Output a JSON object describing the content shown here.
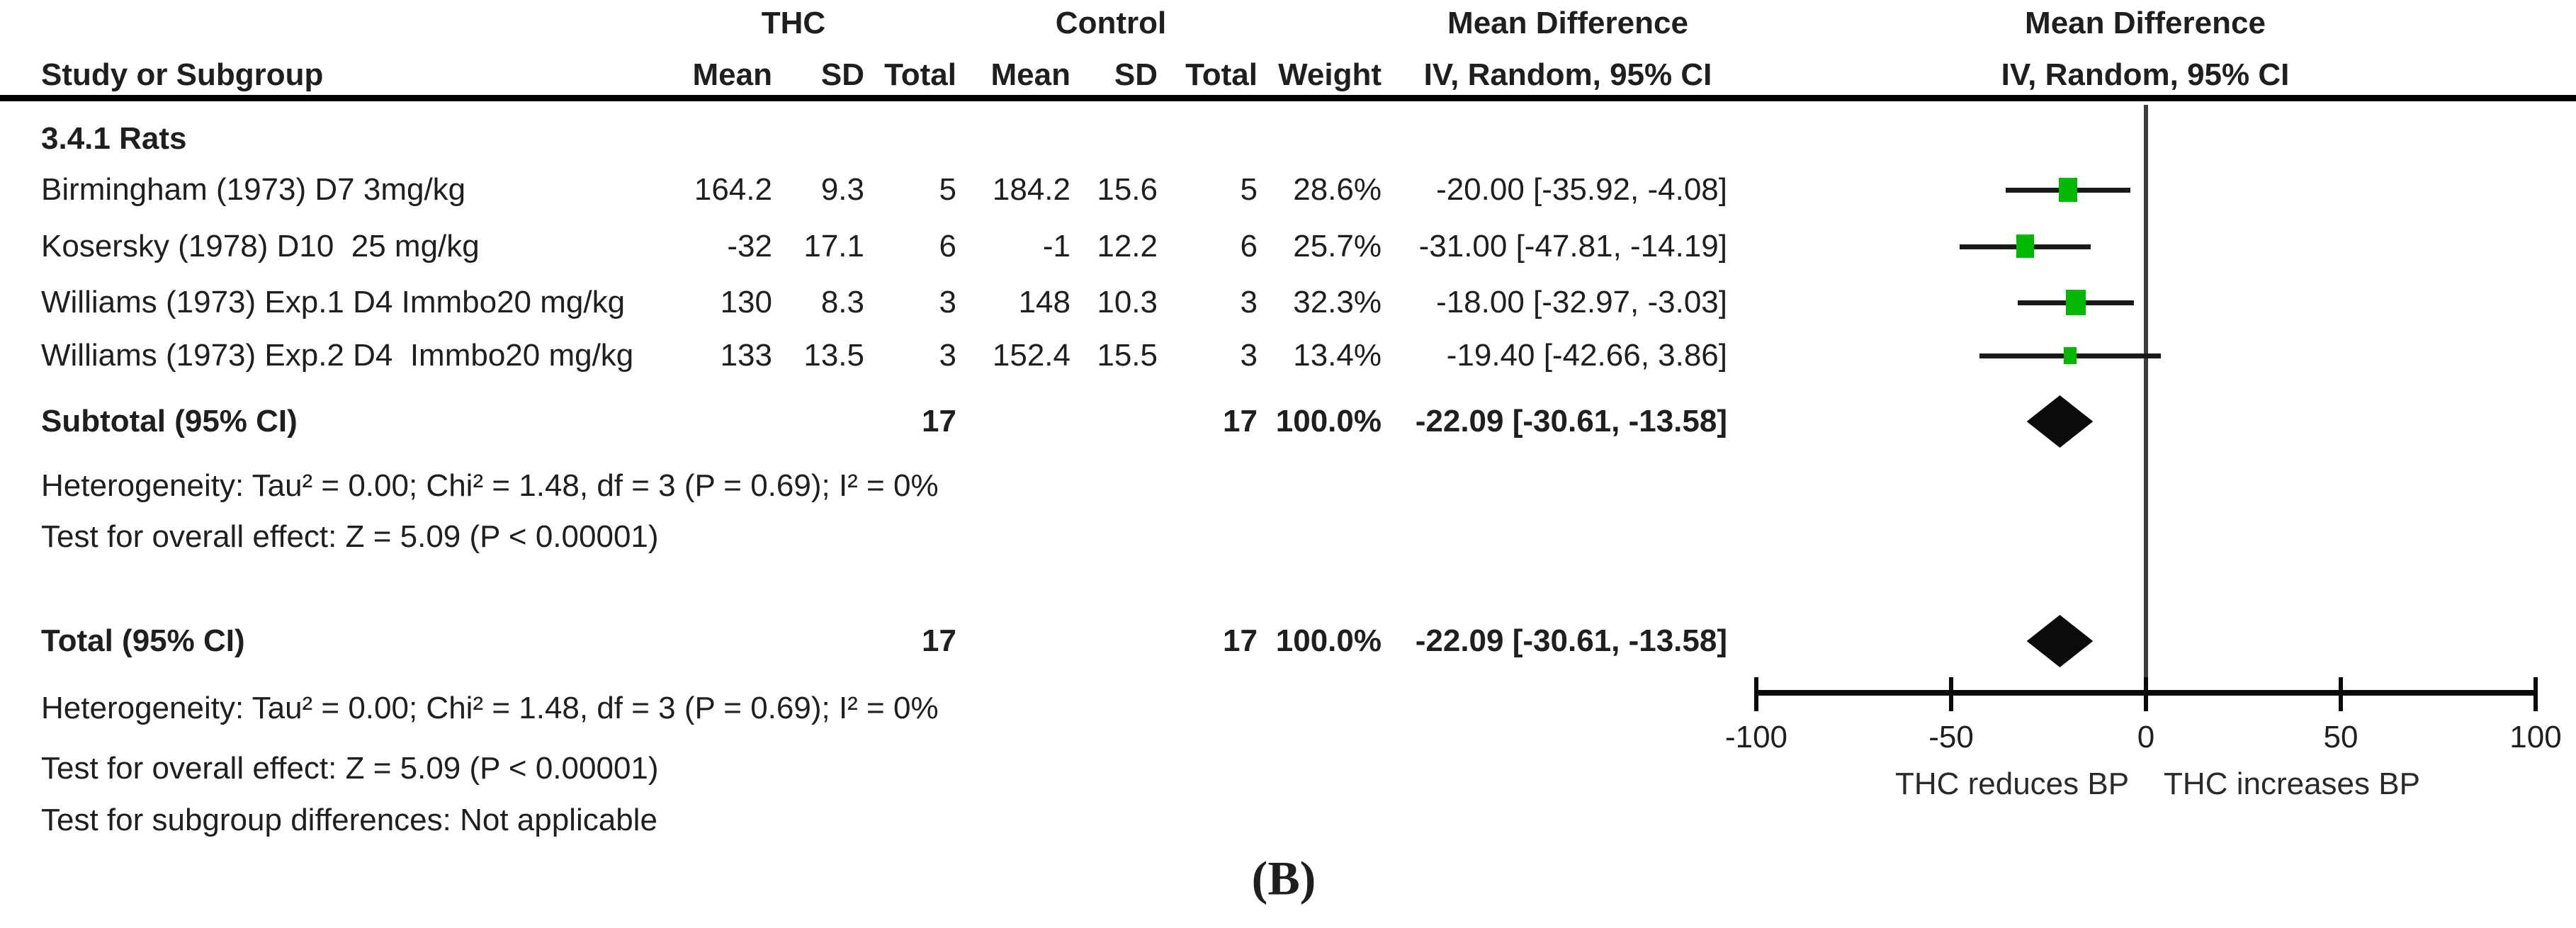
{
  "header": {
    "group_thc": "THC",
    "group_control": "Control",
    "group_md_left": "Mean Difference",
    "group_md_right": "Mean Difference",
    "study_col": "Study or Subgroup",
    "cols": [
      "Mean",
      "SD",
      "Total",
      "Mean",
      "SD",
      "Total",
      "Weight"
    ],
    "iv_left": "IV, Random, 95% CI",
    "iv_right": "IV, Random, 95% CI"
  },
  "table": {
    "section": "3.4.1 Rats",
    "studies": [
      {
        "label": "Birmingham (1973) D7 3mg/kg",
        "thc_mean": "164.2",
        "thc_sd": "9.3",
        "thc_total": "5",
        "c_mean": "184.2",
        "c_sd": "15.6",
        "c_total": "5",
        "weight": "28.6%",
        "ci_text": "-20.00 [-35.92, -4.08]"
      },
      {
        "label": "Kosersky (1978) D10  25 mg/kg",
        "thc_mean": "-32",
        "thc_sd": "17.1",
        "thc_total": "6",
        "c_mean": "-1",
        "c_sd": "12.2",
        "c_total": "6",
        "weight": "25.7%",
        "ci_text": "-31.00 [-47.81, -14.19]"
      },
      {
        "label": "Williams (1973) Exp.1 D4 Immbo20 mg/kg",
        "thc_mean": "130",
        "thc_sd": "8.3",
        "thc_total": "3",
        "c_mean": "148",
        "c_sd": "10.3",
        "c_total": "3",
        "weight": "32.3%",
        "ci_text": "-18.00 [-32.97, -3.03]"
      },
      {
        "label": "Williams (1973) Exp.2 D4  Immbo20 mg/kg",
        "thc_mean": "133",
        "thc_sd": "13.5",
        "thc_total": "3",
        "c_mean": "152.4",
        "c_sd": "15.5",
        "c_total": "3",
        "weight": "13.4%",
        "ci_text": "-19.40 [-42.66, 3.86]"
      }
    ],
    "subtotal": {
      "label": "Subtotal (95% CI)",
      "thc_total": "17",
      "c_total": "17",
      "weight": "100.0%",
      "ci_text": "-22.09 [-30.61, -13.58]"
    },
    "het1": "Heterogeneity: Tau² = 0.00; Chi² = 1.48, df = 3 (P = 0.69); I² = 0%",
    "test1": "Test for overall effect: Z = 5.09 (P < 0.00001)",
    "total": {
      "label": "Total (95% CI)",
      "thc_total": "17",
      "c_total": "17",
      "weight": "100.0%",
      "ci_text": "-22.09 [-30.61, -13.58]"
    },
    "het2": "Heterogeneity: Tau² = 0.00; Chi² = 1.48, df = 3 (P = 0.69); I² = 0%",
    "test2": "Test for overall effect: Z = 5.09 (P < 0.00001)",
    "test3": "Test for subgroup differences: Not applicable"
  },
  "caption": "(B)",
  "chart_data": {
    "type": "forest",
    "title": "Mean Difference, IV, Random, 95% CI",
    "axis": {
      "min": -100,
      "max": 100,
      "ticks": [
        -100,
        -50,
        0,
        50,
        100
      ],
      "tick_labels": [
        "-100",
        "-50",
        "0",
        "50",
        "100"
      ]
    },
    "studies": [
      {
        "name": "Birmingham (1973) D7 3mg/kg",
        "md": -20.0,
        "lo": -35.92,
        "hi": -4.08,
        "weight_pct": 28.6
      },
      {
        "name": "Kosersky (1978) D10 25 mg/kg",
        "md": -31.0,
        "lo": -47.81,
        "hi": -14.19,
        "weight_pct": 25.7
      },
      {
        "name": "Williams (1973) Exp.1 D4 Immbo20 mg/kg",
        "md": -18.0,
        "lo": -32.97,
        "hi": -3.03,
        "weight_pct": 32.3
      },
      {
        "name": "Williams (1973) Exp.2 D4 Immbo20 mg/kg",
        "md": -19.4,
        "lo": -42.66,
        "hi": 3.86,
        "weight_pct": 13.4
      }
    ],
    "subtotal": {
      "md": -22.09,
      "lo": -30.61,
      "hi": -13.58
    },
    "total": {
      "md": -22.09,
      "lo": -30.61,
      "hi": -13.58
    },
    "x_label_left": "THC reduces BP",
    "x_label_right": "THC increases BP",
    "marker_color": "#00b800",
    "diamond_color": "#0b0b0b",
    "line_color": "#1a1a1a"
  }
}
